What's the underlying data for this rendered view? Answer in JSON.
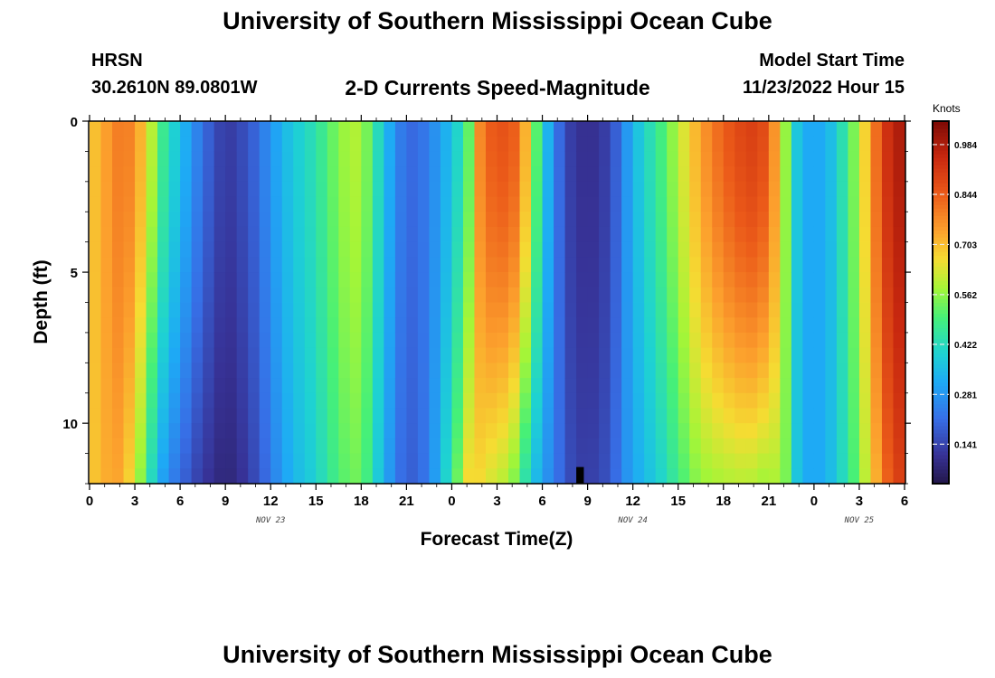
{
  "page": {
    "title": "University of Southern Mississippi Ocean Cube",
    "station": "HRSN",
    "coords": "30.2610N  89.0801W",
    "subtitle": "2-D Currents Speed-Magnitude",
    "model_label": "Model Start Time",
    "model_time": "11/23/2022 Hour 15",
    "footer_title": "University of Southern Mississippi Ocean Cube"
  },
  "chart_data": {
    "type": "heatmap",
    "title": "2-D Currents Speed-Magnitude",
    "xlabel": "Forecast Time(Z)",
    "ylabel": "Depth (ft)",
    "x_hours_range": [
      0,
      54
    ],
    "x_tick_step_hours": 3,
    "x_tick_labels": [
      "0",
      "3",
      "6",
      "9",
      "12",
      "15",
      "18",
      "21",
      "0",
      "3",
      "6",
      "9",
      "12",
      "15",
      "18",
      "21",
      "0",
      "3",
      "6"
    ],
    "date_labels": [
      {
        "text": "NOV 23",
        "at_hour": 12
      },
      {
        "text": "NOV 24",
        "at_hour": 36
      },
      {
        "text": "NOV 25",
        "at_hour": 51
      }
    ],
    "ylim": [
      0,
      12
    ],
    "y_ticks": [
      0,
      5,
      10
    ],
    "y_tick_labels": [
      "0",
      "5",
      "10"
    ],
    "colorbar": {
      "unit_label": "Knots",
      "range": [
        0.03,
        1.05
      ],
      "ticks": [
        "0.984",
        "0.844",
        "0.703",
        "0.562",
        "0.422",
        "0.281",
        "0.141"
      ],
      "tick_values": [
        0.984,
        0.844,
        0.703,
        0.562,
        0.422,
        0.281,
        0.141
      ]
    },
    "speed_surface_hour": [
      0,
      1,
      2,
      3,
      4,
      5,
      6,
      7,
      8,
      9,
      10,
      11,
      12,
      13,
      14,
      15,
      16,
      17,
      18,
      19,
      20,
      21,
      22,
      23,
      24,
      25,
      26,
      27,
      28,
      29,
      30,
      31,
      32,
      33,
      34,
      35,
      36,
      37,
      38,
      39,
      40,
      41,
      42,
      43,
      44,
      45,
      46,
      47,
      48,
      49,
      50,
      51,
      52,
      53,
      54
    ],
    "speed_surface_knots": [
      0.68,
      0.74,
      0.8,
      0.78,
      0.62,
      0.45,
      0.36,
      0.26,
      0.18,
      0.12,
      0.15,
      0.2,
      0.28,
      0.35,
      0.4,
      0.44,
      0.52,
      0.58,
      0.6,
      0.44,
      0.3,
      0.2,
      0.22,
      0.28,
      0.36,
      0.48,
      0.82,
      0.86,
      0.86,
      0.7,
      0.4,
      0.22,
      0.12,
      0.1,
      0.12,
      0.2,
      0.34,
      0.42,
      0.5,
      0.6,
      0.7,
      0.78,
      0.84,
      0.88,
      0.9,
      0.86,
      0.6,
      0.34,
      0.3,
      0.34,
      0.45,
      0.6,
      0.8,
      0.95,
      1.0
    ],
    "bottom_factor": [
      1.0,
      0.98,
      0.92,
      0.82,
      0.7,
      0.62,
      0.58,
      0.56,
      0.58,
      0.62,
      0.7,
      0.78,
      0.84,
      0.88,
      0.9,
      0.9,
      0.9,
      0.9,
      0.9,
      0.9,
      0.9,
      0.9,
      0.95,
      1.1,
      1.3,
      1.35,
      0.78,
      0.72,
      0.66,
      0.6,
      0.7,
      1.0,
      1.2,
      1.3,
      1.25,
      1.1,
      0.9,
      0.85,
      0.82,
      0.8,
      0.78,
      0.74,
      0.7,
      0.68,
      0.66,
      0.66,
      0.95,
      1.0,
      1.0,
      1.0,
      0.95,
      0.9,
      0.88,
      0.9,
      0.92
    ],
    "bottom_dark_hour": 32.5,
    "bottom_dark_speed": 0.02
  }
}
